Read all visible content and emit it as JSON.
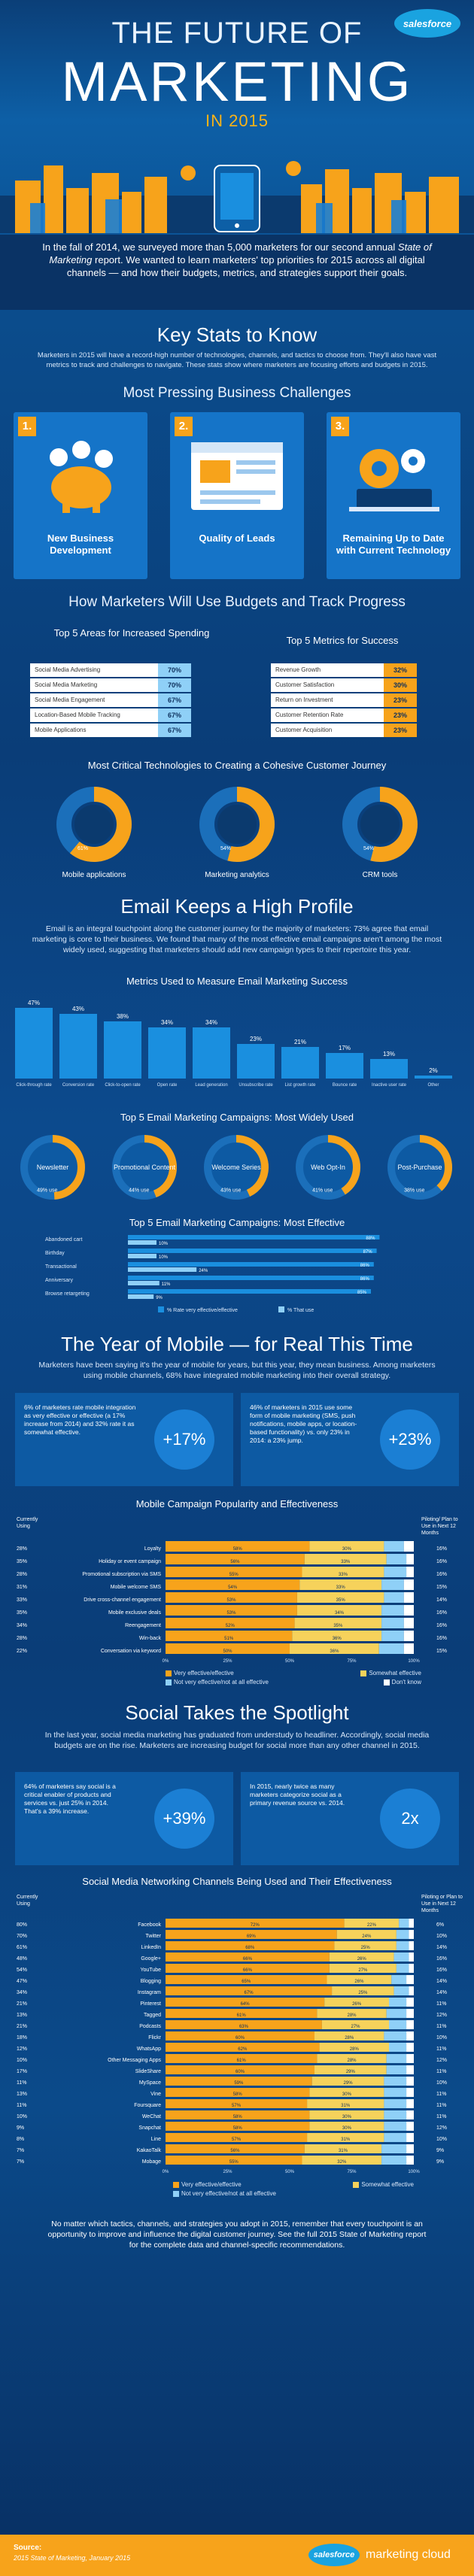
{
  "header": {
    "logo": "salesforce",
    "title_line1": "THE FUTURE OF",
    "title_line2": "MARKETING",
    "title_line3": "IN 2015"
  },
  "intro": {
    "text_a": "In the fall of 2014, we surveyed more than 5,000 marketers for our second annual",
    "text_b": "State of Marketing",
    "text_c": "report. We wanted to learn marketers' top priorities for 2015 across all digital channels — and how their budgets, metrics, and strategies support their goals."
  },
  "key_stats": {
    "title": "Key Stats to Know",
    "body": "Marketers in 2015 will have a record-high number of technologies, channels, and tactics to choose from. They'll also have vast metrics to track and challenges to navigate. These stats show where marketers are focusing efforts and budgets in 2015."
  },
  "challenges": {
    "title": "Most Pressing Business Challenges",
    "items": [
      {
        "num": "1.",
        "label": "New Business Development"
      },
      {
        "num": "2.",
        "label": "Quality of Leads"
      },
      {
        "num": "3.",
        "label": "Remaining Up to Date with Current Technology"
      }
    ]
  },
  "budgets": {
    "title": "How Marketers Will Use Budgets and Track Progress",
    "left_title": "Top 5 Areas for Increased Spending",
    "right_title": "Top 5 Metrics for Success"
  },
  "technologies": {
    "title": "Most Critical Technologies to Creating a Cohesive Customer Journey"
  },
  "email": {
    "title": "Email Keeps a High Profile",
    "body": "Email is an integral touchpoint along the customer journey for the majority of marketers: 73% agree that email marketing is core to their business. We found that many of the most effective email campaigns aren't among the most widely used, suggesting that marketers should add new campaign types to their repertoire this year.",
    "metrics_title": "Metrics Used to Measure Email Marketing Success",
    "used_title": "Top 5 Email Marketing Campaigns: Most Widely Used",
    "effective_title": "Top 5 Email Marketing Campaigns: Most Effective"
  },
  "mobile": {
    "title": "The Year of Mobile — for Real This Time",
    "body": "Marketers have been saying it's the year of mobile for years, but this year, they mean business. Among marketers using mobile channels, 68% have integrated mobile marketing into their overall strategy.",
    "stat1_text": "6% of marketers rate mobile integration as very effective or effective (a 17% increase from 2014) and 32% rate it as somewhat effective.",
    "stat1_pct": "+17%",
    "stat2_text": "46% of marketers in 2015 use some form of mobile marketing (SMS, push notifications, mobile apps, or location-based functionality) vs. only 23% in 2014: a 23% jump.",
    "stat2_pct": "+23%",
    "campaign_title": "Mobile Campaign Popularity and Effectiveness",
    "left_head": "Currently Using",
    "right_head": "Piloting/ Plan to Use in Next 12 Months"
  },
  "social": {
    "title": "Social Takes the Spotlight",
    "body": "In the last year, social media marketing has graduated from understudy to headliner. Accordingly, social media budgets are on the rise. Marketers are increasing budget for social more than any other channel in 2015.",
    "stat1_text": "64% of marketers say social is a critical enabler of products and services vs. just 25% in 2014. That's a 39% increase.",
    "stat1_pct": "+39%",
    "stat2_text": "In 2015, nearly twice as many marketers categorize social as a primary revenue source vs. 2014.",
    "stat2_pct": "2x",
    "networks_title": "Social Media Networking Channels Being Used and Their Effectiveness",
    "left_head": "Currently Using",
    "right_head": "Piloting or Plan to Use in Next 12 Months"
  },
  "legends": {
    "very": "Very effective/effective",
    "somewhat": "Somewhat effective",
    "notvery": "Not very effective/not at all effective",
    "dontknow": "Don't know",
    "rate_very": "% Rate very effective/effective",
    "that_use": "% That use"
  },
  "closing": {
    "text": "No matter which tactics, channels, and strategies you adopt in 2015, remember that every touchpoint is an opportunity to improve and influence the digital customer journey. See the full 2015 State of Marketing report for the complete data and channel-specific recommendations.",
    "source_label": "Source:",
    "source_text": "2015 State of Marketing, January 2015",
    "brand": "marketing cloud"
  },
  "colors": {
    "orange": "#f7a31b",
    "blue": "#1a8fdf",
    "navy": "#0a3365",
    "light": "#8fd0f7"
  },
  "chart_data": [
    {
      "type": "table",
      "title": "Top 5 Areas for Increased Spending",
      "categories": [
        "Social Media Advertising",
        "Social Media Marketing",
        "Social Media Engagement",
        "Location-Based Mobile Tracking",
        "Mobile Applications"
      ],
      "values": [
        70,
        70,
        67,
        67,
        67
      ],
      "unit": "%"
    },
    {
      "type": "table",
      "title": "Top 5 Metrics for Success",
      "categories": [
        "Revenue Growth",
        "Customer Satisfaction",
        "Return on Investment",
        "Customer Retention Rate",
        "Customer Acquisition"
      ],
      "values": [
        32,
        30,
        23,
        23,
        23
      ],
      "unit": "%"
    },
    {
      "type": "pie",
      "title": "Most Critical Technologies to Creating a Cohesive Customer Journey",
      "categories": [
        "Mobile applications",
        "Marketing analytics",
        "CRM tools"
      ],
      "values": [
        61,
        54,
        54
      ],
      "unit": "%"
    },
    {
      "type": "bar",
      "title": "Metrics Used to Measure Email Marketing Success",
      "categories": [
        "Click-through rate",
        "Conversion rate",
        "Click-to-open rate",
        "Open rate",
        "Lead generation",
        "Unsubscribe rate",
        "List growth rate",
        "Bounce rate",
        "Inactive user rate",
        "Other"
      ],
      "values": [
        47,
        43,
        38,
        34,
        34,
        23,
        21,
        17,
        13,
        2
      ],
      "ylim": [
        0,
        50
      ],
      "unit": "%"
    },
    {
      "type": "pie",
      "title": "Top 5 Email Marketing Campaigns: Most Widely Used",
      "categories": [
        "Newsletter",
        "Promotional Content",
        "Welcome Series",
        "Web Opt-In",
        "Post-Purchase"
      ],
      "values": [
        49,
        44,
        43,
        41,
        38
      ],
      "unit": "%"
    },
    {
      "type": "bar",
      "title": "Top 5 Email Marketing Campaigns: Most Effective",
      "categories": [
        "Abandoned cart",
        "Birthday",
        "Transactional",
        "Anniversary",
        "Browse retargeting"
      ],
      "series": [
        {
          "name": "% Rate very effective/effective",
          "values": [
            88,
            87,
            86,
            86,
            85
          ]
        },
        {
          "name": "% That use",
          "values": [
            10,
            10,
            24,
            11,
            9
          ]
        }
      ],
      "unit": "%"
    },
    {
      "type": "bar",
      "title": "Mobile Campaign Popularity and Effectiveness",
      "categories": [
        "Loyalty",
        "Holiday or event campaign",
        "Promotional subscription via SMS",
        "Mobile welcome SMS",
        "Drive cross-channel engagement",
        "Mobile exclusive deals",
        "Reengagement",
        "Win-back",
        "Conversation via keyword"
      ],
      "currently_using": [
        28,
        35,
        28,
        31,
        33,
        35,
        34,
        28,
        22
      ],
      "piloting": [
        16,
        16,
        16,
        15,
        14,
        16,
        16,
        16,
        15
      ],
      "series": [
        {
          "name": "Very effective/effective",
          "values": [
            58,
            56,
            55,
            54,
            53,
            53,
            52,
            51,
            50
          ]
        },
        {
          "name": "Somewhat effective",
          "values": [
            30,
            33,
            33,
            33,
            35,
            34,
            35,
            36,
            36
          ]
        },
        {
          "name": "Not very effective/not at all effective",
          "values": [
            8,
            8,
            9,
            9,
            8,
            9,
            9,
            9,
            10
          ]
        },
        {
          "name": "Don't know",
          "values": [
            4,
            3,
            3,
            4,
            4,
            4,
            4,
            4,
            4
          ]
        }
      ],
      "unit": "%"
    },
    {
      "type": "bar",
      "title": "Social Media Networking Channels Being Used and Their Effectiveness",
      "categories": [
        "Facebook",
        "Twitter",
        "LinkedIn",
        "Google+",
        "YouTube",
        "Blogging",
        "Instagram",
        "Pinterest",
        "Tagged",
        "Podcasts",
        "Flickr",
        "WhatsApp",
        "Other Messaging Apps",
        "SlideShare",
        "MySpace",
        "Vine",
        "Foursquare",
        "WeChat",
        "Snapchat",
        "Line",
        "KakaoTalk",
        "Mobage"
      ],
      "currently_using": [
        80,
        70,
        61,
        48,
        54,
        47,
        34,
        21,
        13,
        21,
        18,
        12,
        10,
        17,
        11,
        13,
        11,
        10,
        9,
        8,
        7,
        7
      ],
      "piloting": [
        6,
        10,
        14,
        16,
        16,
        14,
        14,
        11,
        12,
        11,
        10,
        11,
        12,
        11,
        10,
        11,
        11,
        11,
        12,
        10,
        9,
        9
      ],
      "series": [
        {
          "name": "Very effective/effective",
          "values": [
            72,
            69,
            68,
            66,
            66,
            65,
            67,
            64,
            61,
            63,
            60,
            62,
            61,
            60,
            59,
            58,
            57,
            58,
            58,
            57,
            56,
            55
          ]
        },
        {
          "name": "Somewhat effective",
          "values": [
            22,
            24,
            25,
            26,
            27,
            26,
            25,
            26,
            28,
            27,
            28,
            28,
            28,
            29,
            29,
            30,
            31,
            30,
            30,
            31,
            31,
            32
          ]
        },
        {
          "name": "Not very effective/not at all effective",
          "values": [
            4,
            5,
            5,
            6,
            5,
            6,
            6,
            7,
            8,
            7,
            9,
            7,
            8,
            8,
            9,
            9,
            9,
            9,
            9,
            9,
            10,
            10
          ]
        },
        {
          "name": "Don't know",
          "values": [
            2,
            2,
            2,
            2,
            2,
            3,
            2,
            3,
            3,
            3,
            3,
            3,
            3,
            3,
            3,
            3,
            3,
            3,
            3,
            3,
            3,
            3
          ]
        }
      ],
      "unit": "%"
    }
  ]
}
